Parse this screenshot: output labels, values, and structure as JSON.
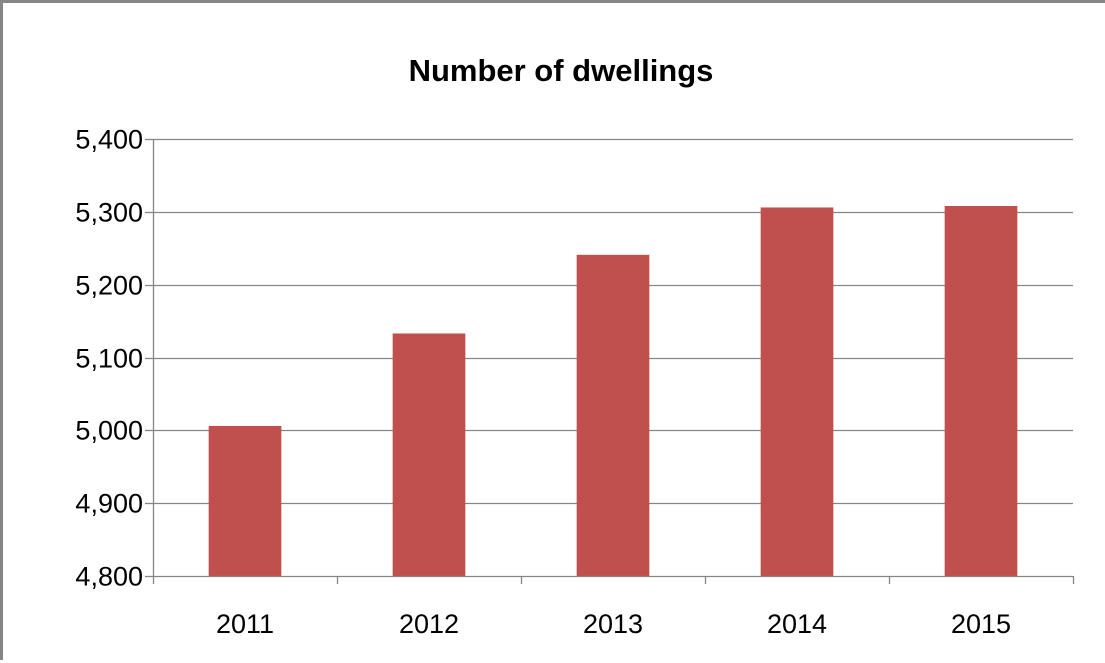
{
  "chart_data": {
    "type": "bar",
    "title": "Number of dwellings",
    "xlabel": "",
    "ylabel": "",
    "categories": [
      "2011",
      "2012",
      "2013",
      "2014",
      "2015"
    ],
    "values": [
      5006,
      5133,
      5241,
      5306,
      5308
    ],
    "ylim": [
      4800,
      5400
    ],
    "yticks": [
      4800,
      4900,
      5000,
      5100,
      5200,
      5300,
      5400
    ],
    "ytick_labels": [
      "4,800",
      "4,900",
      "5,000",
      "5,100",
      "5,200",
      "5,300",
      "5,400"
    ],
    "grid": true,
    "legend": "none",
    "colors": {
      "bar": "#c0504d",
      "grid": "#868686",
      "axis": "#868686"
    }
  }
}
